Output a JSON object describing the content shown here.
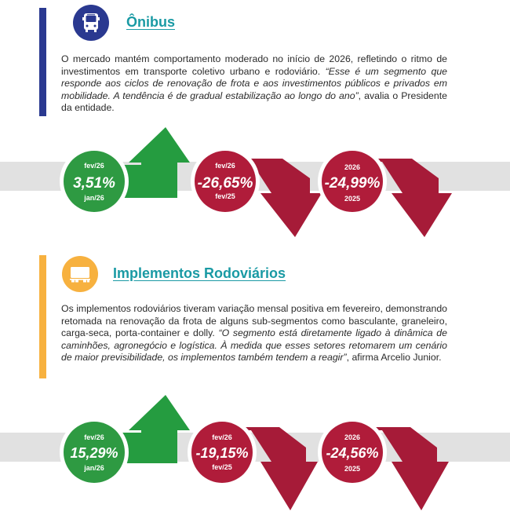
{
  "colors": {
    "onibus_accent": "#2a3990",
    "implementos_accent": "#f7b13f",
    "title_teal": "#1a9aa4",
    "green": "#239a3e",
    "red": "#b01c3a"
  },
  "sections": [
    {
      "id": "onibus",
      "icon": "bus-icon",
      "title": "Ônibus",
      "paragraph": {
        "plain": "O mercado mantém comportamento moderado no início de 2026, refletindo o ritmo de investimentos em transporte coletivo urbano e rodoviário. ",
        "quote": "“Esse é um segmento que responde aos ciclos de renovação de frota e aos investimentos públicos e privados em mobilidade. A tendência é de gradual estabilização ao longo do ano”",
        "tail": ", avalia o Presidente da entidade."
      },
      "stats": [
        {
          "top_label": "fev/26",
          "value": "3,51%",
          "bottom_label": "jan/26",
          "trend": "up"
        },
        {
          "top_label": "fev/26",
          "value": "-26,65%",
          "bottom_label": "fev/25",
          "trend": "down"
        },
        {
          "top_label": "2026",
          "value": "-24,99%",
          "bottom_label": "2025",
          "trend": "down"
        }
      ]
    },
    {
      "id": "implementos",
      "icon": "semi-trailer-icon",
      "title": "Implementos Rodoviários",
      "paragraph": {
        "plain": "Os implementos rodoviários tiveram variação mensal positiva em fevereiro, demonstrando retomada na renovação da frota de alguns sub-segmentos como basculante, graneleiro, carga-seca, porta-container e dolly. ",
        "quote": "“O segmento está diretamente ligado à dinâmica de caminhões, agronegócio e logística. À medida que esses setores retomarem um cenário de maior previsibilidade, os implementos também tendem a reagir”",
        "tail": ", afirma Arcelio Junior."
      },
      "stats": [
        {
          "top_label": "fev/26",
          "value": "15,29%",
          "bottom_label": "jan/26",
          "trend": "up"
        },
        {
          "top_label": "fev/26",
          "value": "-19,15%",
          "bottom_label": "fev/25",
          "trend": "down"
        },
        {
          "top_label": "2026",
          "value": "-24,56%",
          "bottom_label": "2025",
          "trend": "down"
        }
      ]
    }
  ]
}
